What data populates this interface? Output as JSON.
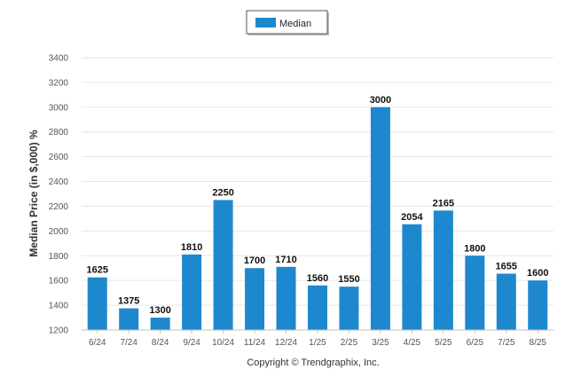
{
  "chart_data": {
    "type": "bar",
    "categories": [
      "6/24",
      "7/24",
      "8/24",
      "9/24",
      "10/24",
      "11/24",
      "12/24",
      "1/25",
      "2/25",
      "3/25",
      "4/25",
      "5/25",
      "6/25",
      "7/25",
      "8/25"
    ],
    "series": [
      {
        "name": "Median",
        "values": [
          1625,
          1375,
          1300,
          1810,
          2250,
          1700,
          1710,
          1560,
          1550,
          3000,
          2054,
          2165,
          1800,
          1655,
          1600
        ],
        "color": "#1e88cf"
      }
    ],
    "ylabel": "Median Price (in $,000) %",
    "xlabel": "",
    "ylim": [
      1200,
      3400
    ],
    "yticks": [
      1200,
      1400,
      1600,
      1800,
      2000,
      2200,
      2400,
      2600,
      2800,
      3000,
      3200,
      3400
    ],
    "grid": true,
    "legend_position": "top-center",
    "footer": "Copyright © Trendgraphix, Inc."
  }
}
